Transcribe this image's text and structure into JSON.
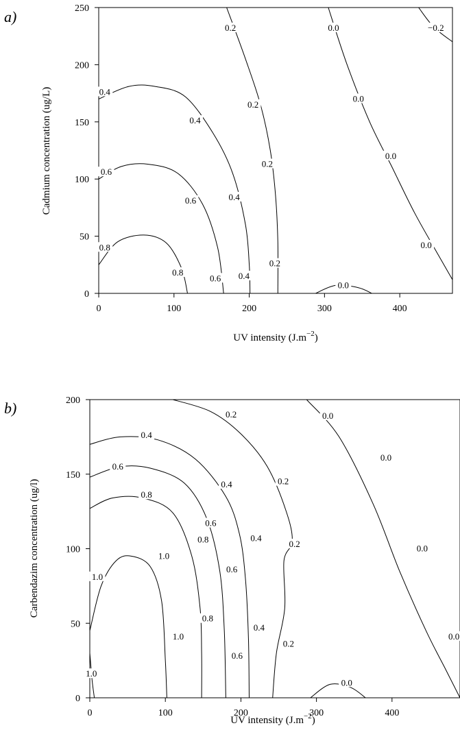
{
  "chart_data": [
    {
      "type": "contour",
      "panel_label": "a)",
      "xlabel": "UV intensity (J.m",
      "xlabel_sup": "−2",
      "xlabel_end": ")",
      "ylabel": "Cadmium concentration (ug/L)",
      "xlim": [
        0,
        470
      ],
      "ylim": [
        0,
        250
      ],
      "xticks": [
        0,
        100,
        200,
        300,
        400
      ],
      "yticks": [
        0,
        50,
        100,
        150,
        200,
        250
      ],
      "contours": [
        {
          "level": 0.8,
          "points": [
            [
              0,
              25
            ],
            [
              25,
              45
            ],
            [
              60,
              51
            ],
            [
              90,
              44
            ],
            [
              110,
              22
            ],
            [
              118,
              0
            ]
          ],
          "labels": [
            {
              "text": "0.8",
              "x": 8,
              "y": 40
            },
            {
              "text": "0.8",
              "x": 105,
              "y": 18
            }
          ]
        },
        {
          "level": 0.6,
          "points": [
            [
              0,
              100
            ],
            [
              30,
              111
            ],
            [
              65,
              113
            ],
            [
              105,
              105
            ],
            [
              138,
              78
            ],
            [
              158,
              40
            ],
            [
              166,
              0
            ]
          ],
          "labels": [
            {
              "text": "0.6",
              "x": 10,
              "y": 106
            },
            {
              "text": "0.6",
              "x": 122,
              "y": 81
            },
            {
              "text": "0.6",
              "x": 155,
              "y": 13
            }
          ]
        },
        {
          "level": 0.4,
          "points": [
            [
              0,
              170
            ],
            [
              40,
              181
            ],
            [
              75,
              181
            ],
            [
              115,
              172
            ],
            [
              152,
              140
            ],
            [
              178,
              105
            ],
            [
              195,
              60
            ],
            [
              200,
              25
            ],
            [
              201,
              0
            ]
          ],
          "labels": [
            {
              "text": "0.4",
              "x": 8,
              "y": 176
            },
            {
              "text": "0.4",
              "x": 128,
              "y": 151
            },
            {
              "text": "0.4",
              "x": 180,
              "y": 84
            },
            {
              "text": "0.4",
              "x": 193,
              "y": 15
            }
          ]
        },
        {
          "level": 0.2,
          "points": [
            [
              170,
              250
            ],
            [
              195,
              205
            ],
            [
              215,
              165
            ],
            [
              228,
              125
            ],
            [
              235,
              85
            ],
            [
              238,
              45
            ],
            [
              238,
              0
            ]
          ],
          "labels": [
            {
              "text": "0.2",
              "x": 175,
              "y": 232
            },
            {
              "text": "0.2",
              "x": 205,
              "y": 165
            },
            {
              "text": "0.2",
              "x": 224,
              "y": 113
            },
            {
              "text": "0.2",
              "x": 234,
              "y": 26
            }
          ]
        },
        {
          "level": 0.0,
          "points": [
            [
              305,
              250
            ],
            [
              330,
              200
            ],
            [
              360,
              150
            ],
            [
              390,
              110
            ],
            [
              420,
              70
            ],
            [
              450,
              35
            ],
            [
              470,
              12
            ]
          ],
          "labels": [
            {
              "text": "0.0",
              "x": 312,
              "y": 232
            },
            {
              "text": "0.0",
              "x": 345,
              "y": 170
            },
            {
              "text": "0.0",
              "x": 388,
              "y": 120
            },
            {
              "text": "0.0",
              "x": 435,
              "y": 42
            }
          ]
        },
        {
          "level": 0.0,
          "points": [
            [
              288,
              0
            ],
            [
              315,
              7
            ],
            [
              345,
              5
            ],
            [
              363,
              0
            ]
          ],
          "labels": [
            {
              "text": "0.0",
              "x": 325,
              "y": 7
            }
          ]
        },
        {
          "level": -0.2,
          "points": [
            [
              425,
              250
            ],
            [
              445,
              233
            ],
            [
              470,
              220
            ]
          ],
          "labels": [
            {
              "text": "−0.2",
              "x": 448,
              "y": 232
            }
          ]
        }
      ]
    },
    {
      "type": "contour",
      "panel_label": "b)",
      "xlabel": "UV intensity (J.m",
      "xlabel_sup": "−2",
      "xlabel_end": ")",
      "ylabel": "Carbendazim concentration (ug/l)",
      "xlim": [
        0,
        490
      ],
      "ylim": [
        0,
        200
      ],
      "xticks": [
        0,
        100,
        200,
        300,
        400
      ],
      "yticks": [
        0,
        50,
        100,
        150,
        200
      ],
      "contours": [
        {
          "level": 1.0,
          "points": [
            [
              0,
              45
            ],
            [
              15,
              75
            ],
            [
              35,
              92
            ],
            [
              55,
              95
            ],
            [
              80,
              88
            ],
            [
              95,
              65
            ],
            [
              100,
              25
            ],
            [
              102,
              0
            ]
          ],
          "labels": [
            {
              "text": "1.0",
              "x": 10,
              "y": 81
            },
            {
              "text": "1.0",
              "x": 98,
              "y": 95
            },
            {
              "text": "1.0",
              "x": 117,
              "y": 41
            }
          ]
        },
        {
          "level": 1.0,
          "points": [
            [
              0,
              30
            ],
            [
              3,
              12
            ],
            [
              6,
              0
            ]
          ],
          "labels": [
            {
              "text": "1.0",
              "x": 2,
              "y": 16
            }
          ]
        },
        {
          "level": 0.8,
          "points": [
            [
              0,
              127
            ],
            [
              30,
              134
            ],
            [
              70,
              134
            ],
            [
              110,
              124
            ],
            [
              135,
              95
            ],
            [
              146,
              60
            ],
            [
              148,
              30
            ],
            [
              148,
              0
            ]
          ],
          "labels": [
            {
              "text": "0.8",
              "x": 75,
              "y": 136
            },
            {
              "text": "0.8",
              "x": 150,
              "y": 106
            },
            {
              "text": "0.8",
              "x": 156,
              "y": 53
            }
          ]
        },
        {
          "level": 0.6,
          "points": [
            [
              0,
              148
            ],
            [
              40,
              155
            ],
            [
              80,
              154
            ],
            [
              125,
              144
            ],
            [
              155,
              120
            ],
            [
              172,
              85
            ],
            [
              178,
              45
            ],
            [
              180,
              0
            ]
          ],
          "labels": [
            {
              "text": "0.6",
              "x": 37,
              "y": 155
            },
            {
              "text": "0.6",
              "x": 160,
              "y": 117
            },
            {
              "text": "0.6",
              "x": 188,
              "y": 86
            },
            {
              "text": "0.6",
              "x": 195,
              "y": 28
            }
          ]
        },
        {
          "level": 0.4,
          "points": [
            [
              0,
              170
            ],
            [
              40,
              175
            ],
            [
              90,
              173
            ],
            [
              140,
              160
            ],
            [
              180,
              135
            ],
            [
              198,
              110
            ],
            [
              206,
              80
            ],
            [
              210,
              40
            ],
            [
              211,
              0
            ]
          ],
          "labels": [
            {
              "text": "0.4",
              "x": 75,
              "y": 176
            },
            {
              "text": "0.4",
              "x": 181,
              "y": 143
            },
            {
              "text": "0.4",
              "x": 220,
              "y": 107
            },
            {
              "text": "0.4",
              "x": 224,
              "y": 47
            }
          ]
        },
        {
          "level": 0.2,
          "points": [
            [
              110,
              200
            ],
            [
              160,
              192
            ],
            [
              200,
              177
            ],
            [
              235,
              155
            ],
            [
              260,
              125
            ],
            [
              268,
              105
            ],
            [
              257,
              92
            ],
            [
              258,
              60
            ],
            [
              247,
              30
            ],
            [
              242,
              0
            ]
          ],
          "labels": [
            {
              "text": "0.2",
              "x": 187,
              "y": 190
            },
            {
              "text": "0.2",
              "x": 256,
              "y": 145
            },
            {
              "text": "0.2",
              "x": 271,
              "y": 103
            },
            {
              "text": "0.2",
              "x": 263,
              "y": 36
            }
          ]
        },
        {
          "level": 0.0,
          "points": [
            [
              287,
              200
            ],
            [
              330,
              175
            ],
            [
              375,
              130
            ],
            [
              410,
              85
            ],
            [
              445,
              45
            ],
            [
              470,
              20
            ],
            [
              490,
              0
            ]
          ],
          "labels": [
            {
              "text": "0.0",
              "x": 315,
              "y": 189
            },
            {
              "text": "0.0",
              "x": 392,
              "y": 161
            },
            {
              "text": "0.0",
              "x": 440,
              "y": 100
            },
            {
              "text": "0.0",
              "x": 482,
              "y": 41
            }
          ]
        },
        {
          "level": 0.0,
          "points": [
            [
              292,
              0
            ],
            [
              318,
              9
            ],
            [
              345,
              7
            ],
            [
              365,
              0
            ]
          ],
          "labels": [
            {
              "text": "0.0",
              "x": 340,
              "y": 10
            }
          ]
        }
      ]
    }
  ]
}
